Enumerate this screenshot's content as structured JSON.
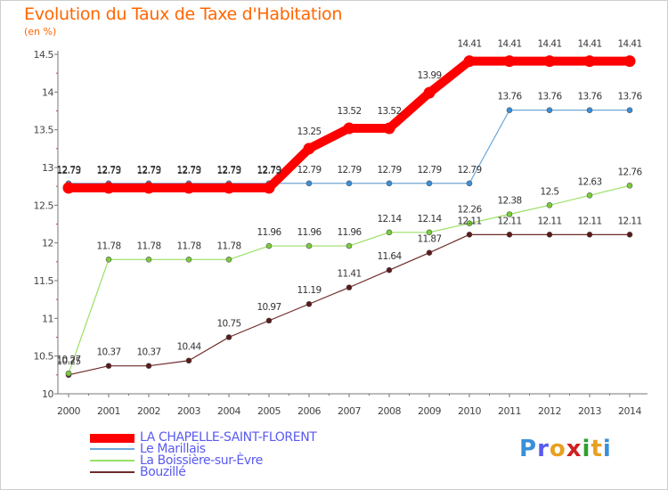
{
  "title": "Evolution du Taux de Taxe d'Habitation",
  "unit_label": "(en %)",
  "logo": {
    "text": "Proxiti",
    "letters": [
      {
        "ch": "P",
        "color": "#3a8fd8"
      },
      {
        "ch": "r",
        "color": "#5a5af0"
      },
      {
        "ch": "o",
        "color": "#e8a020"
      },
      {
        "ch": "x",
        "color": "#d02020"
      },
      {
        "ch": "i",
        "color": "#30a030"
      },
      {
        "ch": "t",
        "color": "#e8a020"
      },
      {
        "ch": "i",
        "color": "#3a8fd8"
      }
    ]
  },
  "chart_data": {
    "type": "line",
    "title": "Evolution du Taux de Taxe d'Habitation",
    "ylabel": "(en %)",
    "xlabel": "",
    "x": [
      "2000",
      "2001",
      "2002",
      "2003",
      "2004",
      "2005",
      "2006",
      "2007",
      "2008",
      "2009",
      "2010",
      "2011",
      "2012",
      "2013",
      "2014"
    ],
    "ylim": [
      10,
      14.5
    ],
    "yticks": [
      10,
      10.5,
      11,
      11.5,
      12,
      12.5,
      13,
      13.5,
      14,
      14.5
    ],
    "ytick_labels": [
      "10",
      "10.5",
      "11",
      "11.5",
      "12",
      "12.5",
      "13",
      "13.5",
      "14",
      "14.5"
    ],
    "grid": false,
    "legend": "bottom-left",
    "series": [
      {
        "name": "LA CHAPELLE-SAINT-FLORENT",
        "color": "#ff0000",
        "values": [
          12.73,
          12.73,
          12.73,
          12.73,
          12.73,
          12.73,
          13.25,
          13.52,
          13.52,
          13.99,
          14.41,
          14.41,
          14.41,
          14.41,
          14.41
        ],
        "labels": [
          "12.73",
          "12.73",
          "12.73",
          "12.73",
          "12.73",
          "12.73",
          "13.25",
          "13.52",
          "13.52",
          "13.99",
          "14.41",
          "14.41",
          "14.41",
          "14.41",
          "14.41"
        ]
      },
      {
        "name": "Le Marillais",
        "color": "#6ea8d8",
        "values": [
          12.79,
          12.79,
          12.79,
          12.79,
          12.79,
          12.79,
          12.79,
          12.79,
          12.79,
          12.79,
          12.79,
          13.76,
          13.76,
          13.76,
          13.76
        ],
        "labels": [
          "12.79",
          "12.79",
          "12.79",
          "12.79",
          "12.79",
          "12.79",
          "12.79",
          "12.79",
          "12.79",
          "12.79",
          "12.79",
          "13.76",
          "13.76",
          "13.76",
          "13.76"
        ]
      },
      {
        "name": "La Boissière-sur-Èvre",
        "color": "#99e066",
        "values": [
          10.27,
          11.78,
          11.78,
          11.78,
          11.78,
          11.96,
          11.96,
          11.96,
          12.14,
          12.14,
          12.26,
          12.38,
          12.5,
          12.63,
          12.76
        ],
        "labels": [
          "10.27",
          "11.78",
          "11.78",
          "11.78",
          "11.78",
          "11.96",
          "11.96",
          "11.96",
          "12.14",
          "12.14",
          "12.26",
          "12.38",
          "12.5",
          "12.63",
          "12.76"
        ]
      },
      {
        "name": "Bouzillé",
        "color": "#6e2a2a",
        "values": [
          10.25,
          10.37,
          10.37,
          10.44,
          10.75,
          10.97,
          11.19,
          11.41,
          11.64,
          11.87,
          12.11,
          12.11,
          12.11,
          12.11,
          12.11
        ],
        "labels": [
          "10.25",
          "10.37",
          "10.37",
          "10.44",
          "10.75",
          "10.97",
          "11.19",
          "11.41",
          "11.64",
          "11.87",
          "12.11",
          "12.11",
          "12.11",
          "12.11",
          "12.11"
        ]
      }
    ]
  }
}
